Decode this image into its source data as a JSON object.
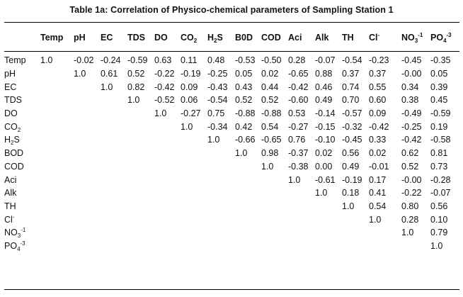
{
  "title": "Table 1a: Correlation of Physico-chemical parameters of Sampling Station 1",
  "columns": [
    {
      "main": "Temp"
    },
    {
      "main": "pH"
    },
    {
      "main": "EC"
    },
    {
      "main": "TDS"
    },
    {
      "main": "DO"
    },
    {
      "main": "CO",
      "sub": "2"
    },
    {
      "main": "H",
      "sub": "2",
      "tail": "S"
    },
    {
      "main": "B0D"
    },
    {
      "main": "COD"
    },
    {
      "main": "Aci"
    },
    {
      "main": "Alk"
    },
    {
      "main": "TH"
    },
    {
      "main": "Cl",
      "sup": "-"
    },
    {
      "main": "NO",
      "sub": "3",
      "sup": "-1"
    },
    {
      "main": "PO",
      "sub": "4",
      "sup": "-3"
    }
  ],
  "rows": [
    {
      "label": {
        "main": "Temp"
      },
      "values": [
        "1.0",
        "-0.02",
        "-0.24",
        "-0.59",
        "0.63",
        "0.11",
        "0.48",
        "-0.53",
        "-0.50",
        "0.28",
        "-0.07",
        "-0.54",
        "-0.23",
        "-0.45",
        "-0.35"
      ]
    },
    {
      "label": {
        "main": "pH"
      },
      "values": [
        "",
        "1.0",
        "0.61",
        "0.52",
        "-0.22",
        "-0.19",
        "-0.25",
        "0.05",
        "0.02",
        "-0.65",
        "0.88",
        "0.37",
        "0.37",
        "-0.00",
        "0.05"
      ]
    },
    {
      "label": {
        "main": "EC"
      },
      "values": [
        "",
        "",
        "1.0",
        "0.82",
        "-0.42",
        "0.09",
        "-0.43",
        "0.43",
        "0.44",
        "-0.42",
        "0.46",
        "0.74",
        "0.55",
        "0.34",
        "0.39"
      ]
    },
    {
      "label": {
        "main": "TDS"
      },
      "values": [
        "",
        "",
        "",
        "1.0",
        "-0.52",
        "0.06",
        "-0.54",
        "0.52",
        "0.52",
        "-0.60",
        "0.49",
        "0.70",
        "0.60",
        "0.38",
        "0.45"
      ]
    },
    {
      "label": {
        "main": "DO"
      },
      "values": [
        "",
        "",
        "",
        "",
        "1.0",
        "-0.27",
        "0.75",
        "-0.88",
        "-0.88",
        "0.53",
        "-0.14",
        "-0.57",
        "0.09",
        "-0.49",
        "-0.59"
      ]
    },
    {
      "label": {
        "main": "CO",
        "sub": "2"
      },
      "values": [
        "",
        "",
        "",
        "",
        "",
        "1.0",
        "-0.34",
        "0.42",
        "0.54",
        "-0.27",
        "-0.15",
        "-0.32",
        "-0.42",
        "-0.25",
        "0.19"
      ]
    },
    {
      "label": {
        "main": "H",
        "sub": "2",
        "tail": "S"
      },
      "values": [
        "",
        "",
        "",
        "",
        "",
        "",
        "1.0",
        "-0.66",
        "-0.65",
        "0.76",
        "-0.10",
        "-0.45",
        "0.33",
        "-0.42",
        "-0.58"
      ]
    },
    {
      "label": {
        "main": "BOD"
      },
      "values": [
        "",
        "",
        "",
        "",
        "",
        "",
        "",
        "1.0",
        "0.98",
        "-0.37",
        "0.02",
        "0.56",
        "0.02",
        "0.62",
        "0.81"
      ]
    },
    {
      "label": {
        "main": "COD"
      },
      "values": [
        "",
        "",
        "",
        "",
        "",
        "",
        "",
        "",
        "1.0",
        "-0.38",
        "0.00",
        "0.49",
        "-0.01",
        "0.52",
        "0.73"
      ]
    },
    {
      "label": {
        "main": "Aci"
      },
      "values": [
        "",
        "",
        "",
        "",
        "",
        "",
        "",
        "",
        "",
        "1.0",
        "-0.61",
        "-0.19",
        "0.17",
        "-0.00",
        "-0.28"
      ]
    },
    {
      "label": {
        "main": "Alk"
      },
      "values": [
        "",
        "",
        "",
        "",
        "",
        "",
        "",
        "",
        "",
        "",
        "1.0",
        "0.18",
        "0.41",
        "-0.22",
        "-0.07"
      ]
    },
    {
      "label": {
        "main": "TH"
      },
      "values": [
        "",
        "",
        "",
        "",
        "",
        "",
        "",
        "",
        "",
        "",
        "",
        "1.0",
        "0.54",
        "0.80",
        "0.56"
      ]
    },
    {
      "label": {
        "main": "Cl",
        "sup": "-"
      },
      "values": [
        "",
        "",
        "",
        "",
        "",
        "",
        "",
        "",
        "",
        "",
        "",
        "",
        "1.0",
        "0.28",
        "0.10"
      ]
    },
    {
      "label": {
        "main": "NO",
        "sub": "3",
        "sup": "-1"
      },
      "values": [
        "",
        "",
        "",
        "",
        "",
        "",
        "",
        "",
        "",
        "",
        "",
        "",
        "",
        "1.0",
        "0.79"
      ]
    },
    {
      "label": {
        "main": "PO",
        "sub": "4",
        "sup": "-3"
      },
      "values": [
        "",
        "",
        "",
        "",
        "",
        "",
        "",
        "",
        "",
        "",
        "",
        "",
        "",
        "",
        "1.0"
      ]
    }
  ]
}
